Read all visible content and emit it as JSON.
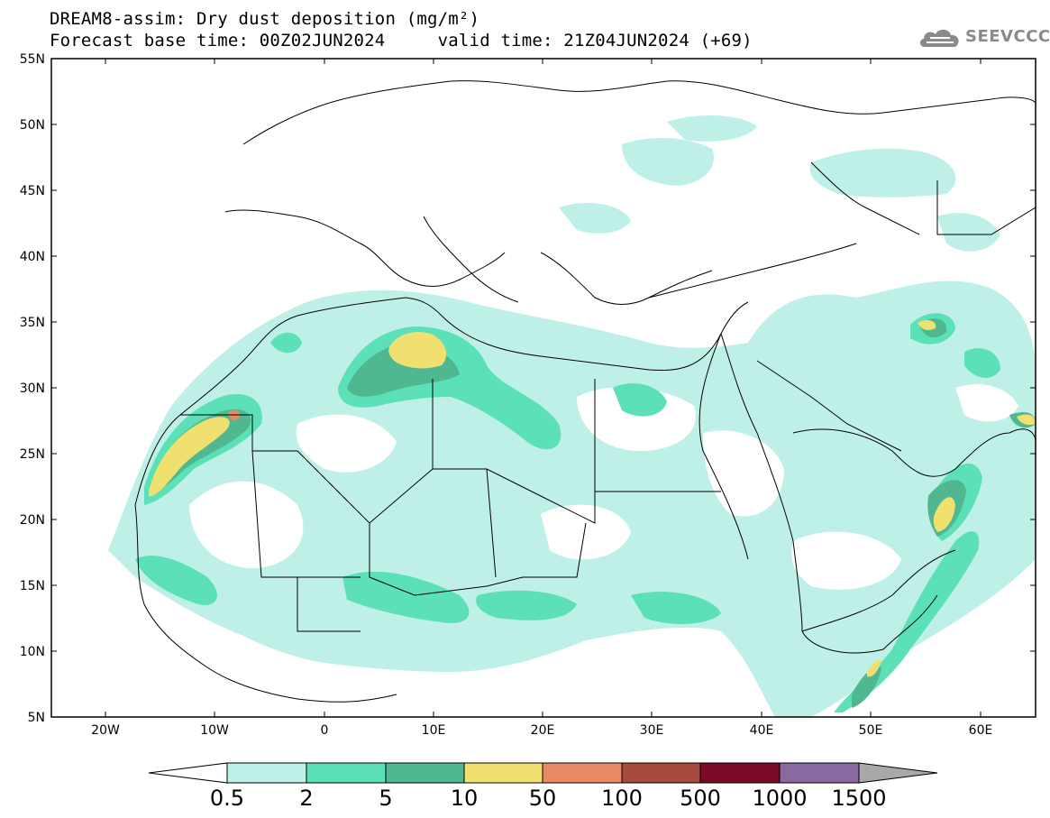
{
  "header": {
    "title_line1": "DREAM8-assim: Dry dust deposition (mg/m²)",
    "title_line2": "Forecast base time: 00Z02JUN2024     valid time: 21Z04JUN2024 (+69)"
  },
  "logo": {
    "text": "SEEVCCC",
    "icon": "cloud-icon",
    "color": "#8a8a8a"
  },
  "map": {
    "projection": "lat-lon",
    "lon_range": [
      -25,
      65
    ],
    "lat_range": [
      5,
      55
    ],
    "region": "North Africa, Middle East and Europe",
    "background": "#ffffff",
    "coastline_color": "#000000"
  },
  "axes": {
    "lat_labels": [
      "55N",
      "50N",
      "45N",
      "40N",
      "35N",
      "30N",
      "25N",
      "20N",
      "15N",
      "10N",
      "5N"
    ],
    "lon_labels": [
      "20W",
      "10W",
      "0",
      "10E",
      "20E",
      "30E",
      "40E",
      "50E",
      "60E"
    ]
  },
  "colorbar": {
    "labels": [
      "0.5",
      "2",
      "5",
      "10",
      "50",
      "100",
      "500",
      "1000",
      "1500"
    ],
    "colors": [
      "#bff0e8",
      "#5ce0b8",
      "#50b890",
      "#f0e070",
      "#e88a66",
      "#a84a3e",
      "#7a0a26",
      "#8a68a0",
      "#a8a8a8"
    ],
    "below_color": "#ffffff"
  }
}
